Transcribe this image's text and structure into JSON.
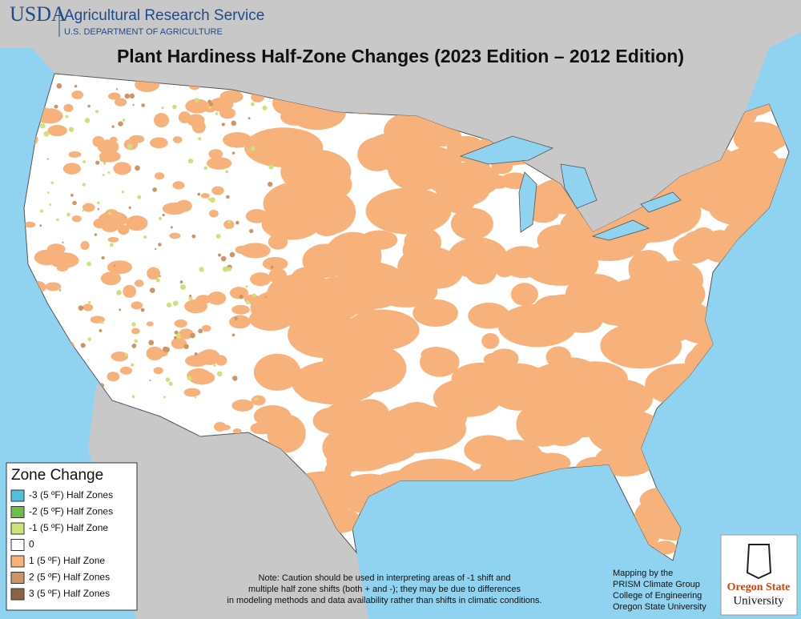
{
  "header": {
    "logo": "USDA",
    "agency": "Agricultural Research Service",
    "department": "U.S. DEPARTMENT OF AGRICULTURE"
  },
  "title": "Plant Hardiness Half-Zone Changes (2023 Edition – 2012 Edition)",
  "legend": {
    "title": "Zone Change",
    "items": [
      {
        "label": "-3 (5 ºF) Half Zones",
        "color": "#4fc0dc"
      },
      {
        "label": "-2 (5 ºF) Half Zones",
        "color": "#6cbf48"
      },
      {
        "label": "-1 (5 ºF) Half Zone",
        "color": "#cde37a"
      },
      {
        "label": "0",
        "color": "#ffffff"
      },
      {
        "label": "1 (5 ºF) Half Zone",
        "color": "#f6b27a"
      },
      {
        "label": "2 (5 ºF) Half Zones",
        "color": "#cf9466"
      },
      {
        "label": "3 (5 ºF) Half Zones",
        "color": "#8c6240"
      }
    ]
  },
  "note": [
    "Note:  Caution should be used in interpreting areas of -1 shift and",
    "multiple half zone shifts (both + and -); they may be due to differences",
    "in modeling methods and data availability rather than shifts in climatic conditions."
  ],
  "credits": [
    "Mapping by the",
    "PRISM Climate Group",
    "College of Engineering",
    "Oregon State University"
  ],
  "logo": {
    "line1": "Oregon State",
    "line2": "University"
  }
}
